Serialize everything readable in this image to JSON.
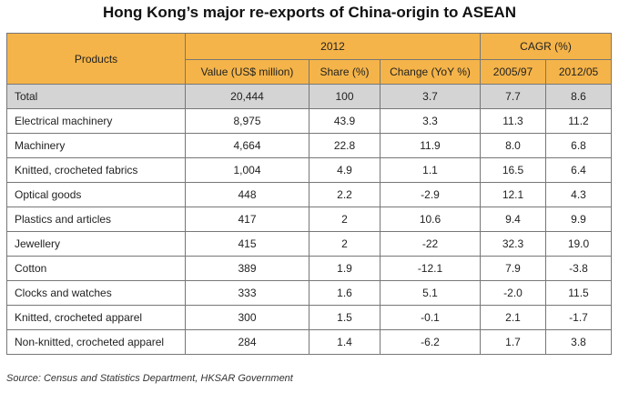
{
  "title": "Hong Kong’s major re-exports of China-origin to ASEAN",
  "header": {
    "products": "Products",
    "group_2012": "2012",
    "group_cagr": "CAGR (%)",
    "value": "Value (US$ million)",
    "share": "Share (%)",
    "change": "Change (YoY %)",
    "cagr_1": "2005/97",
    "cagr_2": "2012/05"
  },
  "rows": [
    {
      "product": "Total",
      "value": "20,444",
      "share": "100",
      "change": "3.7",
      "cagr_1": "7.7",
      "cagr_2": "8.6"
    },
    {
      "product": "Electrical machinery",
      "value": "8,975",
      "share": "43.9",
      "change": "3.3",
      "cagr_1": "11.3",
      "cagr_2": "11.2"
    },
    {
      "product": "Machinery",
      "value": "4,664",
      "share": "22.8",
      "change": "11.9",
      "cagr_1": "8.0",
      "cagr_2": "6.8"
    },
    {
      "product": "Knitted, crocheted fabrics",
      "value": "1,004",
      "share": "4.9",
      "change": "1.1",
      "cagr_1": "16.5",
      "cagr_2": "6.4"
    },
    {
      "product": "Optical goods",
      "value": "448",
      "share": "2.2",
      "change": "-2.9",
      "cagr_1": "12.1",
      "cagr_2": "4.3"
    },
    {
      "product": "Plastics and articles",
      "value": "417",
      "share": "2",
      "change": "10.6",
      "cagr_1": "9.4",
      "cagr_2": "9.9"
    },
    {
      "product": "Jewellery",
      "value": "415",
      "share": "2",
      "change": "-22",
      "cagr_1": "32.3",
      "cagr_2": "19.0"
    },
    {
      "product": "Cotton",
      "value": "389",
      "share": "1.9",
      "change": "-12.1",
      "cagr_1": "7.9",
      "cagr_2": "-3.8"
    },
    {
      "product": "Clocks and watches",
      "value": "333",
      "share": "1.6",
      "change": "5.1",
      "cagr_1": "-2.0",
      "cagr_2": "11.5"
    },
    {
      "product": "Knitted, crocheted apparel",
      "value": "300",
      "share": "1.5",
      "change": "-0.1",
      "cagr_1": "2.1",
      "cagr_2": "-1.7"
    },
    {
      "product": "Non-knitted, crocheted apparel",
      "value": "284",
      "share": "1.4",
      "change": "-6.2",
      "cagr_1": "1.7",
      "cagr_2": "3.8"
    }
  ],
  "source": "Source: Census and Statistics Department, HKSAR Government",
  "colors": {
    "header_bg": "#f5b449",
    "total_bg": "#d4d4d4",
    "border": "#777777"
  }
}
